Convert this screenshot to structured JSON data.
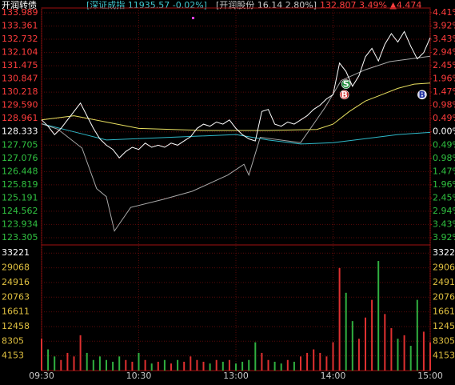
{
  "chart_data": {
    "type": "line",
    "header": {
      "title": "开润转债",
      "index": "[深证成指 11935.57 -0.02%]",
      "stock": "[开润股份 16.14 2.80%]",
      "quote": "132.807 3.49% ▲4.474"
    },
    "xlim": [
      0,
      240
    ],
    "xticks": [
      {
        "value": 0,
        "label": "09:30"
      },
      {
        "value": 60,
        "label": "10:30"
      },
      {
        "value": 120,
        "label": "13:00"
      },
      {
        "value": 180,
        "label": "14:00"
      },
      {
        "value": 240,
        "label": "15:00"
      }
    ],
    "ylim": [
      123.0,
      134.217
    ],
    "yticks": [
      133.989,
      133.361,
      132.732,
      132.104,
      131.475,
      130.847,
      130.218,
      {
        "value": 129.59,
        "label": "129.590"
      },
      128.961,
      128.333,
      127.705,
      127.076,
      126.448,
      125.819,
      125.191,
      124.562,
      123.934,
      123.305
    ],
    "prev_close": 128.333,
    "y2lim": [
      -4.156,
      4.585
    ],
    "y2ticks": [
      {
        "value": 4.41,
        "label": "4.41%"
      },
      {
        "value": 3.92,
        "label": "3.92%"
      },
      {
        "value": 3.43,
        "label": "3.43%"
      },
      {
        "value": 2.94,
        "label": "2.94%"
      },
      {
        "value": 2.45,
        "label": "2.45%"
      },
      {
        "value": 1.96,
        "label": "1.96%"
      },
      {
        "value": 1.47,
        "label": "1.47%"
      },
      {
        "value": 0.98,
        "label": "0.98%"
      },
      {
        "value": 0.49,
        "label": "0.49%"
      },
      {
        "value": 0,
        "label": "0.00%"
      },
      {
        "value": -0.49,
        "label": "0.49%"
      },
      {
        "value": -0.98,
        "label": "0.98%"
      },
      {
        "value": -1.47,
        "label": "1.47%"
      },
      {
        "value": -1.96,
        "label": "1.96%"
      },
      {
        "value": -2.45,
        "label": "2.45%"
      },
      {
        "value": -2.94,
        "label": "2.94%"
      },
      {
        "value": -3.43,
        "label": "3.43%"
      },
      {
        "value": -3.92,
        "label": "3.92%"
      }
    ],
    "grid": true,
    "series": [
      {
        "color": "#ffffff",
        "x": [
          0,
          4,
          8,
          12,
          16,
          20,
          24,
          28,
          32,
          36,
          40,
          44,
          48,
          52,
          56,
          60,
          64,
          68,
          72,
          76,
          80,
          84,
          88,
          92,
          96,
          100,
          104,
          108,
          112,
          116,
          120,
          124,
          128,
          132,
          136,
          140,
          144,
          148,
          152,
          156,
          160,
          164,
          168,
          172,
          176,
          180,
          184,
          188,
          192,
          196,
          200,
          204,
          208,
          212,
          216,
          220,
          224,
          228,
          232,
          236,
          240
        ],
        "values": [
          128.9,
          128.6,
          128.2,
          128.5,
          128.9,
          129.3,
          129.7,
          129.1,
          128.5,
          128.0,
          127.7,
          127.5,
          127.1,
          127.4,
          127.6,
          127.5,
          127.8,
          127.6,
          127.7,
          127.6,
          127.8,
          127.7,
          127.9,
          128.1,
          128.5,
          128.7,
          128.6,
          128.8,
          128.7,
          128.9,
          128.5,
          128.2,
          128.0,
          127.9,
          129.3,
          129.4,
          128.7,
          128.6,
          128.8,
          128.7,
          128.9,
          129.1,
          129.4,
          129.6,
          129.9,
          130.1,
          131.6,
          131.2,
          130.5,
          131.0,
          131.9,
          132.3,
          131.7,
          132.5,
          133.0,
          132.6,
          133.1,
          132.4,
          131.8,
          132.1,
          132.807
        ]
      },
      {
        "color": "#e8e060",
        "x": [
          0,
          20,
          40,
          60,
          100,
          140,
          170,
          180,
          190,
          200,
          210,
          220,
          230,
          240
        ],
        "values": [
          128.9,
          129.1,
          128.8,
          128.5,
          128.4,
          128.4,
          128.45,
          128.7,
          129.3,
          129.8,
          130.1,
          130.4,
          130.6,
          130.65
        ]
      },
      {
        "color": "#a8a8a8",
        "axis": "y2",
        "x": [
          0,
          10,
          25,
          34,
          40,
          45,
          55,
          75,
          93,
          115,
          125,
          128,
          135,
          160,
          175,
          185,
          200,
          215,
          240
        ],
        "values": [
          0.3,
          0.1,
          -0.6,
          -2.1,
          -2.4,
          -3.67,
          -2.8,
          -2.5,
          -2.2,
          -1.6,
          -1.2,
          -1.6,
          -0.2,
          -0.4,
          0.9,
          1.9,
          2.3,
          2.6,
          2.8
        ]
      },
      {
        "color": "#2fb8c8",
        "axis": "y2",
        "x": [
          0,
          20,
          40,
          80,
          120,
          140,
          160,
          180,
          200,
          220,
          240
        ],
        "values": [
          0.3,
          0.0,
          -0.3,
          -0.2,
          -0.1,
          -0.3,
          -0.45,
          -0.4,
          -0.25,
          -0.1,
          -0.02
        ]
      }
    ],
    "annotations": [
      {
        "label": "S",
        "x": 188,
        "y": 130.6,
        "color": "#1e8a3a"
      },
      {
        "label": "B",
        "x": 187,
        "y": 130.1,
        "color": "#c8282a"
      },
      {
        "label": "B",
        "x": 235,
        "y": 130.1,
        "color": "#d8d8f0"
      }
    ],
    "volume": {
      "type": "bar",
      "ylim": [
        0,
        35310
      ],
      "yticks": [
        33221,
        29068,
        24916,
        20763,
        16611,
        12458,
        8305,
        4153
      ],
      "up_color": "#e03030",
      "down_color": "#30b040",
      "values": [
        9000,
        6000,
        4000,
        3000,
        5000,
        4000,
        10000,
        5000,
        3000,
        4000,
        3000,
        2500,
        4000,
        3000,
        2500,
        5000,
        3000,
        2000,
        2500,
        3000,
        2000,
        3000,
        2500,
        4000,
        3000,
        2500,
        2000,
        3000,
        2500,
        3000,
        2000,
        2500,
        3000,
        8000,
        5000,
        3000,
        2500,
        2000,
        3000,
        2500,
        4000,
        5000,
        6000,
        5000,
        4000,
        8000,
        29000,
        22000,
        14000,
        9000,
        15000,
        20000,
        31000,
        16000,
        12000,
        9000,
        10000,
        7000,
        20000,
        11000,
        8000
      ]
    }
  }
}
